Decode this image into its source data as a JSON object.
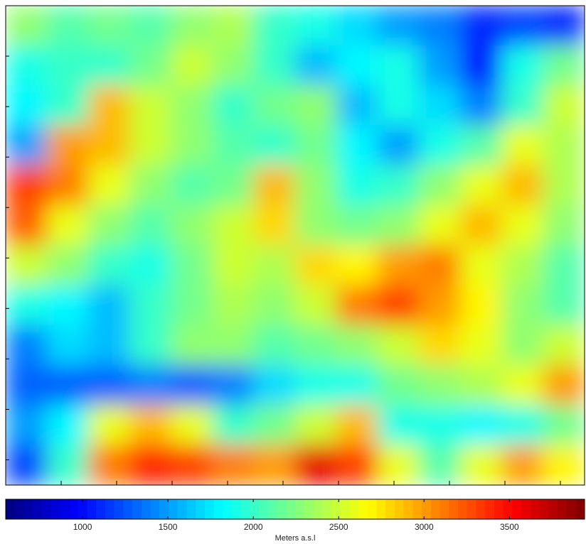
{
  "chart_data": {
    "type": "heatmap",
    "colormap": "jet",
    "grid_values": [
      [
        2300,
        2100,
        2200,
        2100,
        2300,
        2400,
        2000,
        1900,
        1700,
        1500,
        1400,
        1100,
        1200,
        1100
      ],
      [
        1900,
        2000,
        2000,
        2200,
        2500,
        2300,
        2000,
        1600,
        1800,
        1900,
        1500,
        1000,
        1900,
        2200
      ],
      [
        1800,
        2000,
        2900,
        2500,
        2300,
        2000,
        2200,
        2300,
        1600,
        1900,
        1700,
        1400,
        2000,
        2500
      ],
      [
        1500,
        3000,
        2900,
        2500,
        2300,
        2100,
        2000,
        2200,
        1800,
        1500,
        1900,
        2100,
        2600,
        2400
      ],
      [
        3300,
        3100,
        2600,
        2300,
        2100,
        2200,
        2900,
        2300,
        1900,
        2000,
        2300,
        2600,
        2900,
        2400
      ],
      [
        3200,
        2600,
        2300,
        2100,
        2300,
        2500,
        2800,
        2300,
        2200,
        2300,
        2600,
        2900,
        2600,
        2300
      ],
      [
        2500,
        2300,
        2000,
        1900,
        2200,
        2500,
        2400,
        2800,
        2700,
        3000,
        3100,
        2600,
        2400,
        2100
      ],
      [
        1900,
        1800,
        1600,
        2000,
        2200,
        2400,
        2300,
        2500,
        3100,
        3300,
        3000,
        2700,
        2300,
        2100
      ],
      [
        1400,
        1700,
        1600,
        2000,
        2300,
        2300,
        2100,
        2200,
        2300,
        2500,
        2800,
        2600,
        2300,
        2500
      ],
      [
        1300,
        1300,
        1300,
        1400,
        1300,
        1400,
        1700,
        1900,
        1900,
        2200,
        2300,
        2400,
        2600,
        3000
      ],
      [
        1500,
        1800,
        2600,
        2900,
        2600,
        2000,
        2200,
        2500,
        2900,
        1900,
        1900,
        1800,
        1900,
        2200
      ],
      [
        1200,
        2000,
        3100,
        3400,
        3300,
        3100,
        3000,
        3600,
        3300,
        2600,
        2100,
        2600,
        3000,
        2700
      ]
    ],
    "colorbar": {
      "clim": [
        550,
        3940
      ],
      "ticks": [
        1000,
        1500,
        2000,
        2500,
        3000,
        3500
      ],
      "label": "Meters a.s.l"
    }
  }
}
